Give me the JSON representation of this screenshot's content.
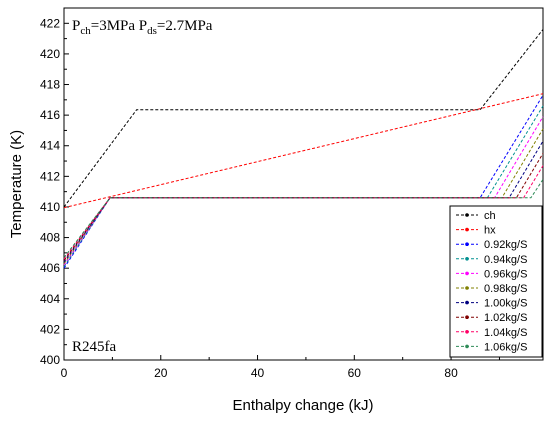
{
  "chart_data": {
    "type": "line",
    "xlabel": "Enthalpy change (kJ)",
    "ylabel": "Temperature (K)",
    "xlim": [
      0,
      99
    ],
    "ylim": [
      400,
      423
    ],
    "xticks": [
      0,
      20,
      40,
      60,
      80
    ],
    "yticks": [
      400,
      402,
      404,
      406,
      408,
      410,
      412,
      414,
      416,
      418,
      420,
      422
    ],
    "annotation_top": {
      "parts": [
        {
          "text": "P",
          "sub": false
        },
        {
          "text": "ch",
          "sub": true
        },
        {
          "text": "=3MPa P",
          "sub": false
        },
        {
          "text": "ds",
          "sub": true
        },
        {
          "text": "=2.7MPa",
          "sub": false
        }
      ]
    },
    "annotation_bottom": "R245fa",
    "legend_position": "bottom-right",
    "series": [
      {
        "name": "ch",
        "color": "#000000",
        "style": "dashed",
        "points": [
          [
            0,
            410.0
          ],
          [
            15,
            416.35
          ],
          [
            86,
            416.35
          ],
          [
            99,
            421.6
          ]
        ]
      },
      {
        "name": "hx",
        "color": "#ff0000",
        "style": "dashed",
        "points": [
          [
            0,
            409.95
          ],
          [
            99,
            417.4
          ]
        ]
      },
      {
        "name": "0.92kg/S",
        "color": "#0000ff",
        "style": "dashed",
        "points": [
          [
            0,
            406.0
          ],
          [
            9.5,
            410.6
          ],
          [
            86,
            410.6
          ],
          [
            99,
            417.3
          ]
        ]
      },
      {
        "name": "0.94kg/S",
        "color": "#009090",
        "style": "dashed",
        "points": [
          [
            0,
            406.1
          ],
          [
            9.5,
            410.6
          ],
          [
            87.5,
            410.6
          ],
          [
            99,
            416.6
          ]
        ]
      },
      {
        "name": "0.96kg/S",
        "color": "#ff00ff",
        "style": "dashed",
        "points": [
          [
            0,
            406.2
          ],
          [
            9.5,
            410.6
          ],
          [
            89,
            410.6
          ],
          [
            99,
            415.9
          ]
        ]
      },
      {
        "name": "0.98kg/S",
        "color": "#808000",
        "style": "dashed",
        "points": [
          [
            0,
            406.3
          ],
          [
            9.5,
            410.6
          ],
          [
            90.5,
            410.6
          ],
          [
            99,
            415.1
          ]
        ]
      },
      {
        "name": "1.00kg/S",
        "color": "#000080",
        "style": "dashed",
        "points": [
          [
            0,
            406.4
          ],
          [
            9.5,
            410.6
          ],
          [
            92,
            410.6
          ],
          [
            99,
            414.3
          ]
        ]
      },
      {
        "name": "1.02kg/S",
        "color": "#800000",
        "style": "dashed",
        "points": [
          [
            0,
            406.5
          ],
          [
            9.5,
            410.6
          ],
          [
            93.5,
            410.6
          ],
          [
            99,
            413.5
          ]
        ]
      },
      {
        "name": "1.04kg/S",
        "color": "#ff0066",
        "style": "dashed",
        "points": [
          [
            0,
            406.6
          ],
          [
            9.5,
            410.6
          ],
          [
            95,
            410.6
          ],
          [
            99,
            412.7
          ]
        ]
      },
      {
        "name": "1.06kg/S",
        "color": "#2e8b57",
        "style": "dashed",
        "points": [
          [
            0,
            406.7
          ],
          [
            9.5,
            410.6
          ],
          [
            96.5,
            410.6
          ],
          [
            99,
            411.8
          ]
        ]
      }
    ]
  }
}
